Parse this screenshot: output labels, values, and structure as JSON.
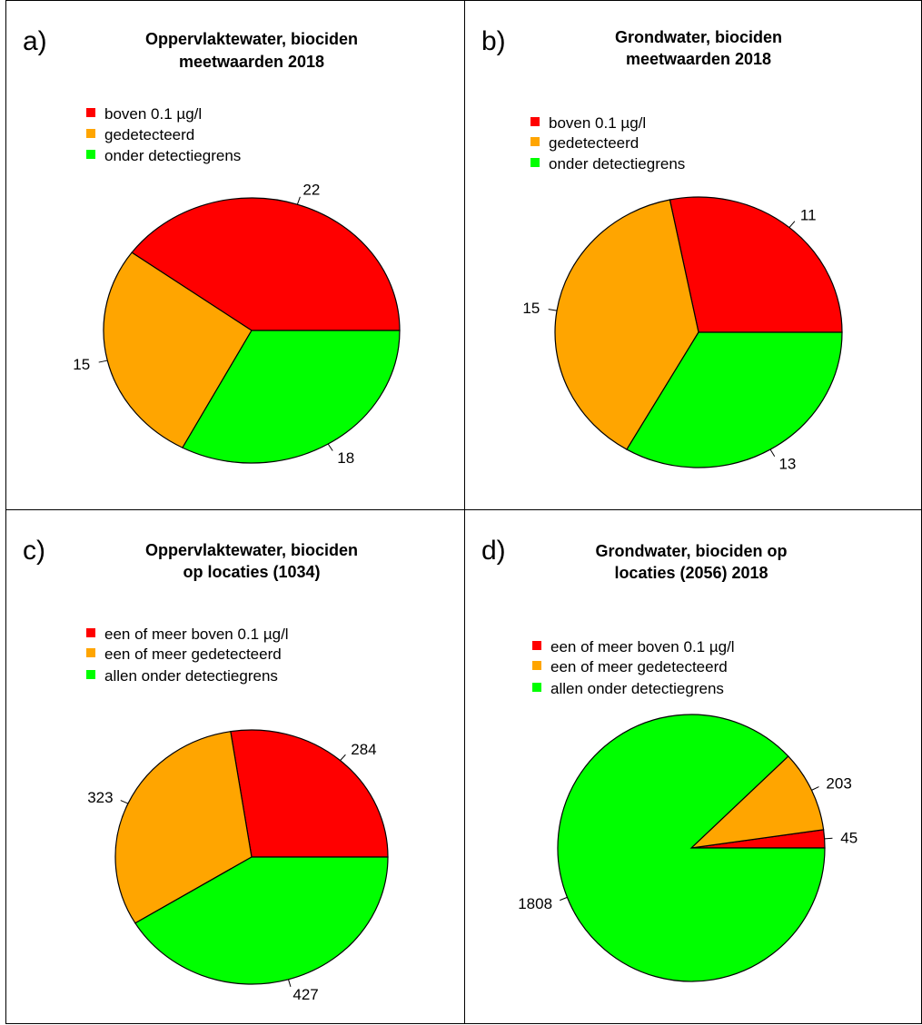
{
  "colors": {
    "red": "#ff0000",
    "orange": "#ffa500",
    "green": "#00ff00",
    "border": "#000000"
  },
  "chart_data": [
    {
      "type": "pie",
      "panel_letter": "a)",
      "title_lines": [
        "Oppervlaktewater, biociden",
        "meetwaarden 2018"
      ],
      "legend": [
        "boven 0.1 µg/l",
        "gedetecteerd",
        "onder detectiegrens"
      ],
      "slices": [
        {
          "name": "boven 0.1 µg/l",
          "value": 22,
          "label": "22",
          "color": "#ff0000"
        },
        {
          "name": "gedetecteerd",
          "value": 15,
          "label": "15",
          "color": "#ffa500"
        },
        {
          "name": "onder detectiegrens",
          "value": 18,
          "label": "18",
          "color": "#00ff00"
        }
      ]
    },
    {
      "type": "pie",
      "panel_letter": "b)",
      "title_lines": [
        "Grondwater, biociden",
        "meetwaarden 2018"
      ],
      "legend": [
        "boven 0.1 µg/l",
        "gedetecteerd",
        "onder detectiegrens"
      ],
      "slices": [
        {
          "name": "boven 0.1 µg/l",
          "value": 11,
          "label": "11",
          "color": "#ff0000"
        },
        {
          "name": "gedetecteerd",
          "value": 15,
          "label": "15",
          "color": "#ffa500"
        },
        {
          "name": "onder detectiegrens",
          "value": 13,
          "label": "13",
          "color": "#00ff00"
        }
      ]
    },
    {
      "type": "pie",
      "panel_letter": "c)",
      "title_lines": [
        "Oppervlaktewater, biociden",
        "op locaties (1034)"
      ],
      "legend": [
        "een of meer boven 0.1 µg/l",
        "een of meer gedetecteerd",
        "allen onder detectiegrens"
      ],
      "slices": [
        {
          "name": "een of meer boven 0.1 µg/l",
          "value": 284,
          "label": "284",
          "color": "#ff0000"
        },
        {
          "name": "een of meer gedetecteerd",
          "value": 323,
          "label": "323",
          "color": "#ffa500"
        },
        {
          "name": "allen onder detectiegrens",
          "value": 427,
          "label": "427",
          "color": "#00ff00"
        }
      ]
    },
    {
      "type": "pie",
      "panel_letter": "d)",
      "title_lines": [
        "Grondwater, biociden op",
        "locaties (2056) 2018"
      ],
      "legend": [
        "een of meer boven 0.1 µg/l",
        "een of meer gedetecteerd",
        "allen onder detectiegrens"
      ],
      "slices": [
        {
          "name": "een of meer boven 0.1 µg/l",
          "value": 45,
          "label": "45",
          "color": "#ff0000"
        },
        {
          "name": "een of meer gedetecteerd",
          "value": 203,
          "label": "203",
          "color": "#ffa500"
        },
        {
          "name": "allen onder detectiegrens",
          "value": 1808,
          "label": "1808",
          "color": "#00ff00"
        }
      ]
    }
  ]
}
